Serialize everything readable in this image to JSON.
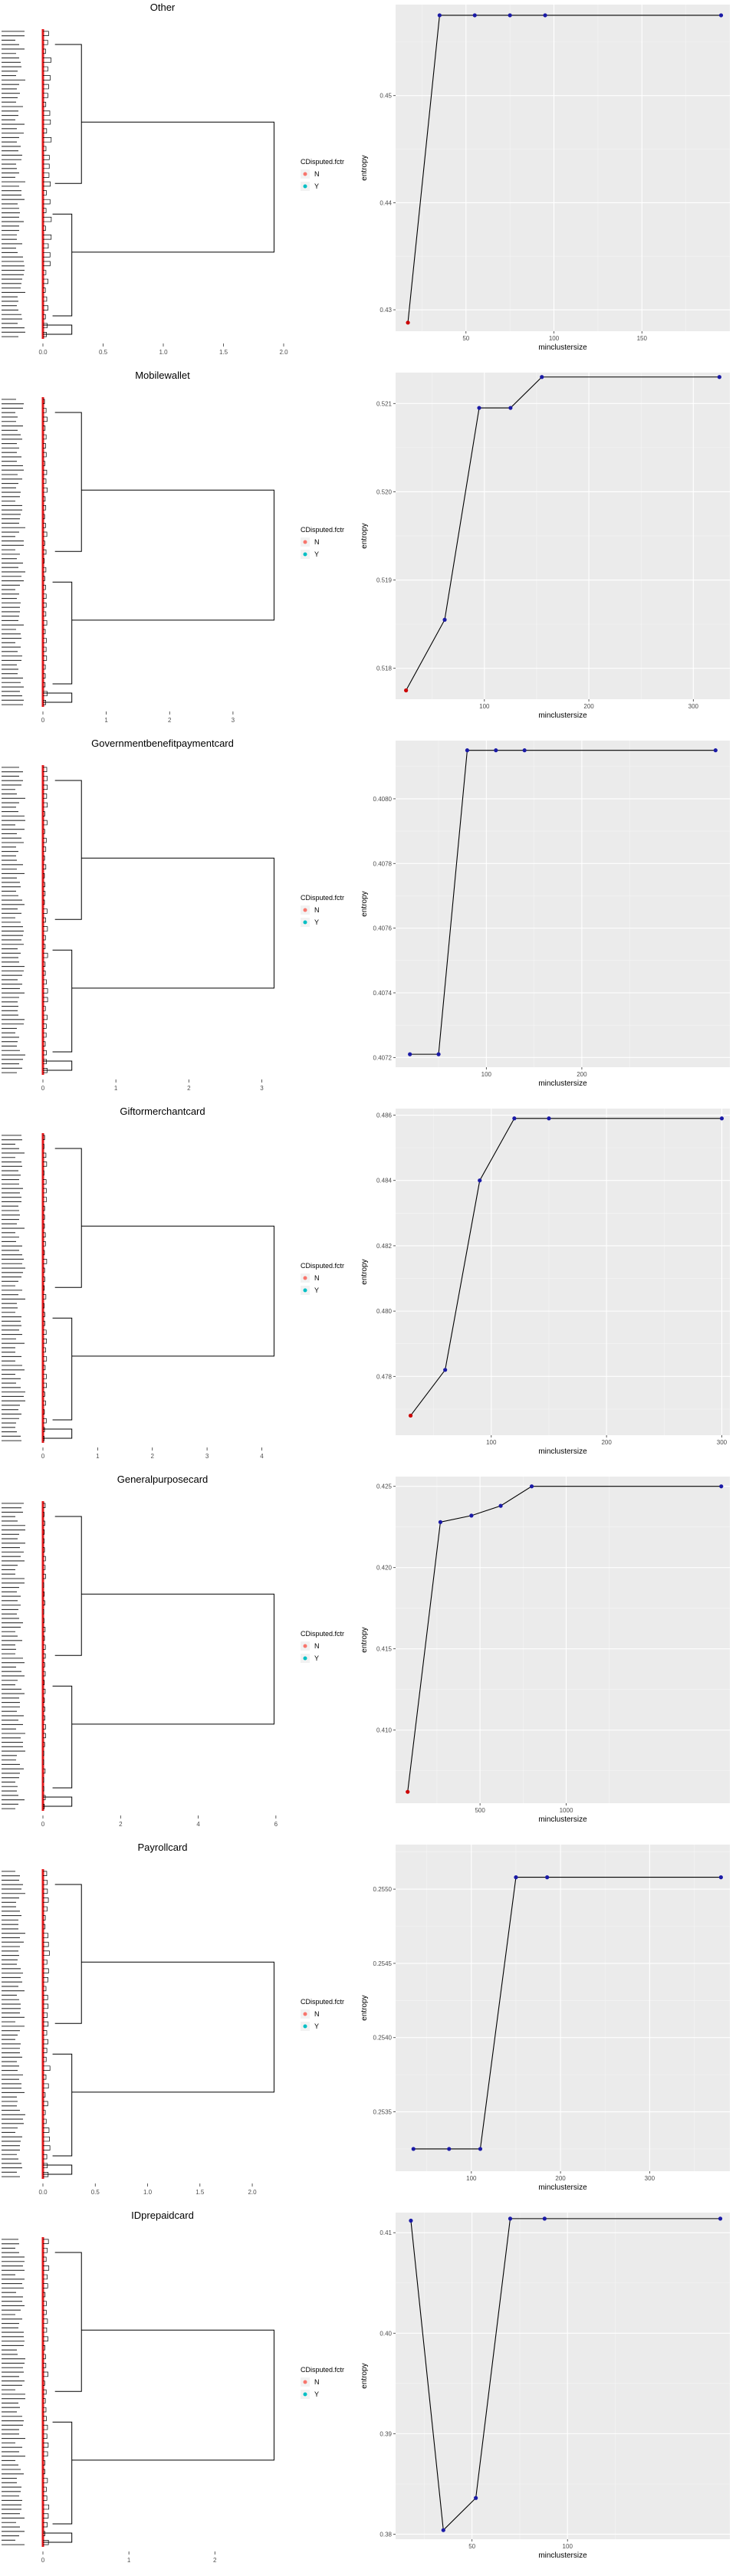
{
  "chart_data": [
    {
      "title": "Other",
      "dendrogram": {
        "type": "dendrogram",
        "xticks": [
          "0.0",
          "0.5",
          "1.0",
          "1.5",
          "2.0"
        ],
        "xlim": [
          0,
          2.0
        ]
      },
      "legend": {
        "title": "CDisputed.fctr",
        "items": [
          {
            "label": "N",
            "color": "#F8766D"
          },
          {
            "label": "Y",
            "color": "#00BFC4"
          }
        ]
      },
      "entropy_plot": {
        "type": "line",
        "xlabel": "minclustersize",
        "ylabel": "entropy",
        "x": [
          17,
          35,
          55,
          75,
          95,
          195
        ],
        "y": [
          0.4288,
          0.4575,
          0.4575,
          0.4575,
          0.4575,
          0.4575
        ],
        "xlim": [
          10,
          200
        ],
        "ylim": [
          0.428,
          0.4585
        ],
        "xticks": [
          50,
          100,
          150
        ],
        "yticks": [
          0.43,
          0.44,
          0.45
        ],
        "xtick_labels": [
          "50",
          "100",
          "150"
        ],
        "ytick_labels": [
          "0.43",
          "0.44",
          "0.45"
        ],
        "first_point_color": "#cc0000",
        "point_color": "#1a1aa6"
      }
    },
    {
      "title": "Mobilewallet",
      "dendrogram": {
        "type": "dendrogram",
        "xticks": [
          "0",
          "1",
          "2",
          "3"
        ],
        "xlim": [
          0,
          3.8
        ]
      },
      "legend": {
        "title": "CDisputed.fctr",
        "items": [
          {
            "label": "N",
            "color": "#F8766D"
          },
          {
            "label": "Y",
            "color": "#00BFC4"
          }
        ]
      },
      "entropy_plot": {
        "type": "line",
        "xlabel": "minclustersize",
        "ylabel": "entropy",
        "x": [
          25,
          62,
          95,
          125,
          155,
          325
        ],
        "y": [
          0.51775,
          0.51855,
          0.52095,
          0.52095,
          0.5213,
          0.5213
        ],
        "xlim": [
          15,
          335
        ],
        "ylim": [
          0.51765,
          0.52135
        ],
        "xticks": [
          100,
          200,
          300
        ],
        "yticks": [
          0.518,
          0.519,
          0.52,
          0.521
        ],
        "xtick_labels": [
          "100",
          "200",
          "300"
        ],
        "ytick_labels": [
          "0.518",
          "0.519",
          "0.520",
          "0.521"
        ],
        "first_point_color": "#cc0000",
        "point_color": "#1a1aa6"
      }
    },
    {
      "title": "Governmentbenefitpaymentcard",
      "dendrogram": {
        "type": "dendrogram",
        "xticks": [
          "0",
          "1",
          "2",
          "3"
        ],
        "xlim": [
          0,
          3.3
        ]
      },
      "legend": {
        "title": "CDisputed.fctr",
        "items": [
          {
            "label": "N",
            "color": "#F8766D"
          },
          {
            "label": "Y",
            "color": "#00BFC4"
          }
        ]
      },
      "entropy_plot": {
        "type": "line",
        "xlabel": "minclustersize",
        "ylabel": "entropy",
        "x": [
          20,
          50,
          80,
          110,
          140,
          340
        ],
        "y": [
          0.40721,
          0.40721,
          0.40815,
          0.40815,
          0.40815,
          0.40815
        ],
        "xlim": [
          5,
          355
        ],
        "ylim": [
          0.40717,
          0.40818
        ],
        "xticks": [
          100,
          200
        ],
        "yticks": [
          0.4072,
          0.4074,
          0.4076,
          0.4078,
          0.408
        ],
        "xtick_labels": [
          "100",
          "200"
        ],
        "ytick_labels": [
          "0.4072",
          "0.4074",
          "0.4076",
          "0.4078",
          "0.4080"
        ],
        "first_point_color": "#1a1aa6",
        "point_color": "#1a1aa6"
      }
    },
    {
      "title": "Giftormerchantcard",
      "dendrogram": {
        "type": "dendrogram",
        "xticks": [
          "0",
          "1",
          "2",
          "3",
          "4"
        ],
        "xlim": [
          0,
          4.4
        ]
      },
      "legend": {
        "title": "CDisputed.fctr",
        "items": [
          {
            "label": "N",
            "color": "#F8766D"
          },
          {
            "label": "Y",
            "color": "#00BFC4"
          }
        ]
      },
      "entropy_plot": {
        "type": "line",
        "xlabel": "minclustersize",
        "ylabel": "entropy",
        "x": [
          30,
          60,
          90,
          120,
          150,
          300
        ],
        "y": [
          0.4768,
          0.4782,
          0.484,
          0.4859,
          0.4859,
          0.4859
        ],
        "xlim": [
          17,
          307
        ],
        "ylim": [
          0.4762,
          0.4862
        ],
        "xticks": [
          100,
          200,
          300
        ],
        "yticks": [
          0.478,
          0.48,
          0.482,
          0.484,
          0.486
        ],
        "xtick_labels": [
          "100",
          "200",
          "300"
        ],
        "ytick_labels": [
          "0.478",
          "0.480",
          "0.482",
          "0.484",
          "0.486"
        ],
        "first_point_color": "#cc0000",
        "point_color": "#1a1aa6"
      }
    },
    {
      "title": "Generalpurposecard",
      "dendrogram": {
        "type": "dendrogram",
        "xticks": [
          "0",
          "2",
          "4",
          "6"
        ],
        "xlim": [
          0,
          6.2
        ]
      },
      "legend": {
        "title": "CDisputed.fctr",
        "items": [
          {
            "label": "N",
            "color": "#F8766D"
          },
          {
            "label": "Y",
            "color": "#00BFC4"
          }
        ]
      },
      "entropy_plot": {
        "type": "line",
        "xlabel": "minclustersize",
        "ylabel": "entropy",
        "x": [
          80,
          270,
          450,
          620,
          800,
          1900
        ],
        "y": [
          0.4062,
          0.4228,
          0.4232,
          0.4238,
          0.425,
          0.425
        ],
        "xlim": [
          10,
          1950
        ],
        "ylim": [
          0.4055,
          0.4256
        ],
        "xticks": [
          500,
          1000
        ],
        "yticks": [
          0.41,
          0.415,
          0.42,
          0.425
        ],
        "xtick_labels": [
          "500",
          "1000"
        ],
        "ytick_labels": [
          "0.410",
          "0.415",
          "0.420",
          "0.425"
        ],
        "first_point_color": "#cc0000",
        "point_color": "#1a1aa6"
      }
    },
    {
      "title": "Payrollcard",
      "dendrogram": {
        "type": "dendrogram",
        "xticks": [
          "0.0",
          "0.5",
          "1.0",
          "1.5",
          "2.0"
        ],
        "xlim": [
          0,
          2.3
        ]
      },
      "legend": {
        "title": "CDisputed.fctr",
        "items": [
          {
            "label": "N",
            "color": "#F8766D"
          },
          {
            "label": "Y",
            "color": "#00BFC4"
          }
        ]
      },
      "entropy_plot": {
        "type": "line",
        "xlabel": "minclustersize",
        "ylabel": "entropy",
        "x": [
          35,
          75,
          110,
          150,
          185,
          380
        ],
        "y": [
          0.25325,
          0.25325,
          0.25325,
          0.25508,
          0.25508,
          0.25508
        ],
        "xlim": [
          15,
          390
        ],
        "ylim": [
          0.2531,
          0.2553
        ],
        "xticks": [
          100,
          200,
          300
        ],
        "yticks": [
          0.2535,
          0.254,
          0.2545,
          0.255
        ],
        "xtick_labels": [
          "100",
          "200",
          "300"
        ],
        "ytick_labels": [
          "0.2535",
          "0.2540",
          "0.2545",
          "0.2550"
        ],
        "first_point_color": "#1a1aa6",
        "point_color": "#1a1aa6"
      }
    },
    {
      "title": "IDprepaidcard",
      "dendrogram": {
        "type": "dendrogram",
        "xticks": [
          "0",
          "1",
          "2"
        ],
        "xlim": [
          0,
          2.8
        ]
      },
      "legend": {
        "title": "CDisputed.fctr",
        "items": [
          {
            "label": "N",
            "color": "#F8766D"
          },
          {
            "label": "Y",
            "color": "#00BFC4"
          }
        ]
      },
      "entropy_plot": {
        "type": "line",
        "xlabel": "minclustersize",
        "ylabel": "entropy",
        "x": [
          18,
          35,
          52,
          70,
          88,
          180
        ],
        "y": [
          0.4112,
          0.3804,
          0.3836,
          0.4114,
          0.4114,
          0.4114
        ],
        "xlim": [
          10,
          185
        ],
        "ylim": [
          0.3795,
          0.412
        ],
        "xticks": [
          50,
          100
        ],
        "yticks": [
          0.38,
          0.39,
          0.4,
          0.41
        ],
        "xtick_labels": [
          "50",
          "100"
        ],
        "ytick_labels": [
          "0.38",
          "0.39",
          "0.40",
          "0.41"
        ],
        "first_point_color": "#1a1aa6",
        "point_color": "#1a1aa6"
      }
    }
  ]
}
